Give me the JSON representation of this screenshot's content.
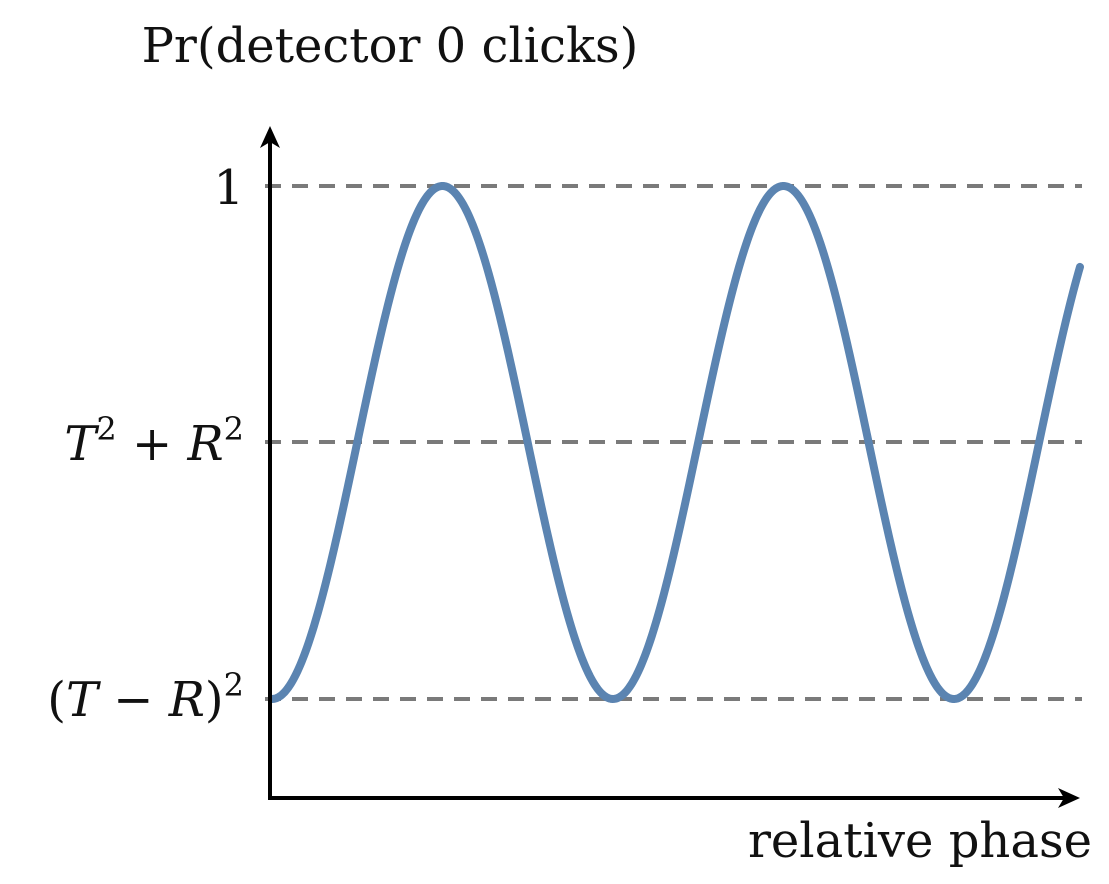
{
  "chart_data": {
    "type": "line",
    "title": "",
    "ylabel": "Pr(detector 0 clicks)",
    "xlabel": "relative phase",
    "ylim": [
      0,
      1
    ],
    "y_ticks": [
      {
        "label": "1",
        "value": 1.0
      },
      {
        "label": "T^2 + R^2",
        "value": 0.5
      },
      {
        "label": "(T − R)^2",
        "value": 0.0
      }
    ],
    "reference_lines": [
      {
        "value": 1.0,
        "style": "dashed",
        "color": "#7a7a7a"
      },
      {
        "value": 0.5,
        "style": "dashed",
        "color": "#7a7a7a"
      },
      {
        "value": 0.0,
        "style": "dashed",
        "color": "#7a7a7a"
      }
    ],
    "series": [
      {
        "formula": "0.5 - 0.5*cos(x)",
        "x_range_periods": [
          0,
          2.37
        ],
        "color": "#5b84b1"
      }
    ],
    "x_ticks": [],
    "grid": false,
    "legend": "none"
  },
  "colors": {
    "curve": "#5b84b1",
    "dashes": "#7a7a7a",
    "axes": "#000000"
  }
}
